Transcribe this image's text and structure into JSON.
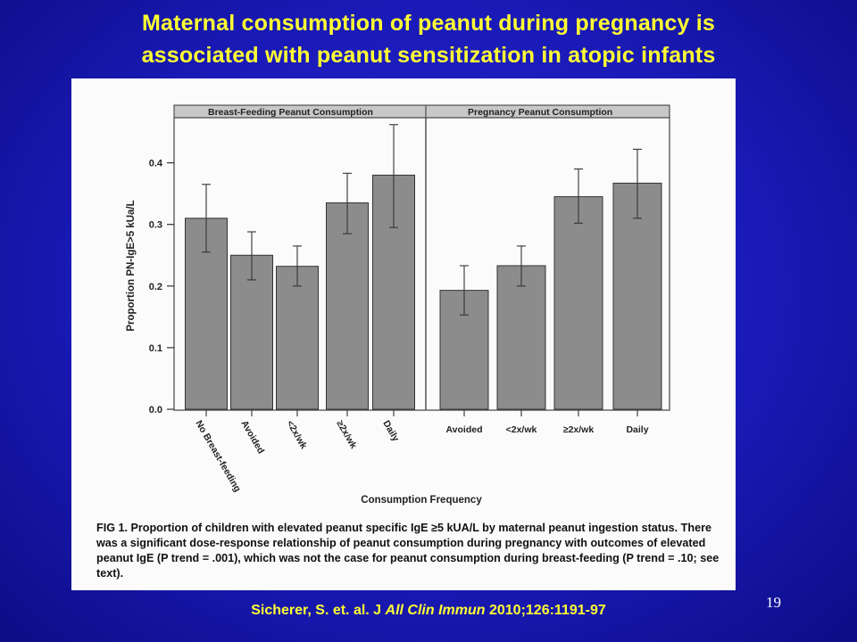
{
  "slide": {
    "title_line1": "Maternal consumption of peanut during pregnancy is",
    "title_line2": "associated with peanut sensitization in atopic infants",
    "page_number": "19"
  },
  "citation": {
    "authors": "Sicherer, S. et. al. J ",
    "journal": "All Clin Immun",
    "ref": " 2010;126:1191-97"
  },
  "caption": {
    "fig_label": "FIG 1.",
    "text": "Proportion of children with elevated peanut specific IgE ≥5 kUA/L by maternal peanut ingestion status. There was a significant dose-response relationship of peanut consumption during pregnancy with outcomes of elevated peanut IgE (P trend = .001), which was not the case for peanut consumption during breast-feeding (P trend = .10; see text)."
  },
  "chart_data": {
    "type": "bar",
    "ylabel": "Proportion PN-IgE>5 kUa/L",
    "xlabel": "Consumption Frequency",
    "ylim": [
      0,
      0.47
    ],
    "yticks": [
      "0.0",
      "0.1",
      "0.2",
      "0.3",
      "0.4"
    ],
    "bar_color": "#8c8c8c",
    "panels": [
      {
        "title": "Breast-Feeding Peanut Consumption",
        "categories": [
          "No Breast-feeding",
          "Avoided",
          "<2x/wk",
          "≥2x/wk",
          "Daily"
        ],
        "values": [
          0.31,
          0.25,
          0.232,
          0.335,
          0.38
        ],
        "err_low": [
          0.255,
          0.21,
          0.2,
          0.285,
          0.295
        ],
        "err_high": [
          0.365,
          0.288,
          0.265,
          0.383,
          0.462
        ]
      },
      {
        "title": "Pregnancy Peanut Consumption",
        "categories": [
          "Avoided",
          "<2x/wk",
          "≥2x/wk",
          "Daily"
        ],
        "values": [
          0.193,
          0.233,
          0.345,
          0.367
        ],
        "err_low": [
          0.153,
          0.2,
          0.302,
          0.31
        ],
        "err_high": [
          0.233,
          0.265,
          0.39,
          0.422
        ]
      }
    ]
  }
}
